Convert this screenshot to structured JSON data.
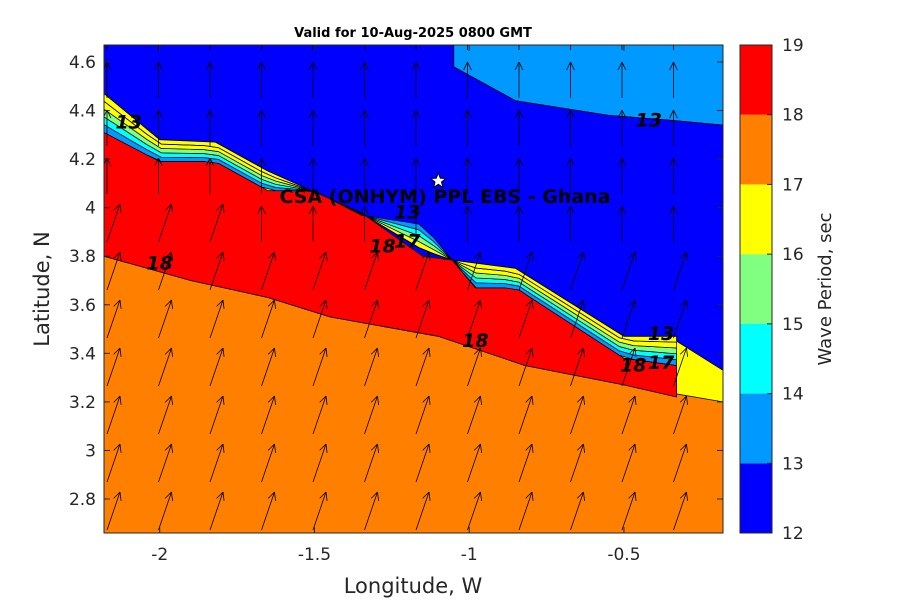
{
  "chart_data": {
    "type": "contour",
    "title": "Valid for 10-Aug-2025 0800 GMT",
    "xlabel": "Longitude, W",
    "ylabel": "Latitude, N",
    "xlim": [
      -2.18,
      -0.18
    ],
    "ylim": [
      2.66,
      4.67
    ],
    "xticks": [
      -2,
      -1.5,
      -1,
      -0.5
    ],
    "xtick_labels": [
      "-2",
      "-1.5",
      "-1",
      "-0.5"
    ],
    "yticks": [
      2.8,
      3,
      3.2,
      3.4,
      3.6,
      3.8,
      4,
      4.2,
      4.4,
      4.6
    ],
    "ytick_labels": [
      "2.8",
      "3",
      "3.2",
      "3.4",
      "3.6",
      "3.8",
      "4",
      "4.2",
      "4.4",
      "4.6"
    ],
    "colorbar": {
      "label": "Wave Period, sec",
      "levels": [
        12,
        13,
        14,
        15,
        16,
        17,
        18,
        19
      ],
      "tick_labels": [
        "12",
        "13",
        "14",
        "15",
        "16",
        "17",
        "18",
        "19"
      ],
      "colors": [
        "#0000ff",
        "#0099ff",
        "#00ffff",
        "#80ff80",
        "#ffff00",
        "#ff8000",
        "#ff0000"
      ]
    },
    "regions": [
      {
        "band": "17-18",
        "color": "#ff8000",
        "boundary": [
          [
            -2.18,
            3.8
          ],
          [
            -1.9,
            3.7
          ],
          [
            -1.65,
            3.63
          ],
          [
            -1.45,
            3.55
          ],
          [
            -1.1,
            3.47
          ],
          [
            -0.82,
            3.35
          ],
          [
            -0.5,
            3.27
          ],
          [
            -0.18,
            3.2
          ],
          [
            -0.18,
            2.66
          ],
          [
            -2.18,
            2.66
          ]
        ]
      },
      {
        "band": "18-19",
        "color": "#ff0000",
        "boundary": [
          [
            -2.18,
            4.31
          ],
          [
            -2,
            4.19
          ],
          [
            -1.82,
            4.19
          ],
          [
            -1.65,
            4.07
          ],
          [
            -1.5,
            4.07
          ],
          [
            -1.35,
            3.97
          ],
          [
            -1.15,
            3.93
          ],
          [
            -0.98,
            3.67
          ],
          [
            -0.85,
            3.67
          ],
          [
            -0.5,
            3.38
          ],
          [
            -0.33,
            3.35
          ],
          [
            -0.33,
            3.22
          ],
          [
            -0.5,
            3.27
          ],
          [
            -0.82,
            3.35
          ],
          [
            -1.1,
            3.47
          ],
          [
            -1.45,
            3.55
          ],
          [
            -1.65,
            3.63
          ],
          [
            -1.9,
            3.7
          ],
          [
            -2.18,
            3.8
          ]
        ]
      },
      {
        "band": "13-14",
        "color": "#0099ff",
        "boundary": [
          [
            -1.05,
            4.67
          ],
          [
            -0.18,
            4.67
          ],
          [
            -0.18,
            4.34
          ],
          [
            -0.35,
            4.36
          ],
          [
            -0.55,
            4.38
          ],
          [
            -0.85,
            4.44
          ],
          [
            -1.05,
            4.58
          ]
        ]
      },
      {
        "band": "12-13",
        "color": "#0000ff",
        "boundary": [
          [
            -2.18,
            4.67
          ],
          [
            -1.05,
            4.67
          ],
          [
            -1.05,
            4.58
          ],
          [
            -0.85,
            4.44
          ],
          [
            -0.55,
            4.38
          ],
          [
            -0.35,
            4.36
          ],
          [
            -0.18,
            4.34
          ],
          [
            -0.18,
            3.33
          ],
          [
            -0.33,
            3.45
          ],
          [
            -0.33,
            3.47
          ],
          [
            -0.5,
            3.47
          ],
          [
            -0.85,
            3.75
          ],
          [
            -1.15,
            3.8
          ],
          [
            -1.35,
            3.98
          ],
          [
            -1.65,
            4.15
          ],
          [
            -1.82,
            4.27
          ],
          [
            -2,
            4.28
          ],
          [
            -2.18,
            4.47
          ]
        ]
      }
    ],
    "contour_labels": [
      {
        "text": "13",
        "x": -0.42,
        "y": 4.36
      },
      {
        "text": "18",
        "x": -2.0,
        "y": 3.77
      },
      {
        "text": "18",
        "x": -1.28,
        "y": 3.84
      },
      {
        "text": "17",
        "x": -1.2,
        "y": 3.86
      },
      {
        "text": "13",
        "x": -1.2,
        "y": 3.98
      },
      {
        "text": "18",
        "x": -0.98,
        "y": 3.45
      },
      {
        "text": "18",
        "x": -0.47,
        "y": 3.35
      },
      {
        "text": "17",
        "x": -0.38,
        "y": 3.36
      },
      {
        "text": "13",
        "x": -0.38,
        "y": 3.48
      },
      {
        "text": "13",
        "x": -2.1,
        "y": 4.35
      }
    ],
    "site": {
      "name": "CSA (ONHYM) PPL EBS  - Ghana",
      "lon": -1.1,
      "lat": 4.11
    },
    "direction_arrows": "wave direction vectors on grid"
  }
}
